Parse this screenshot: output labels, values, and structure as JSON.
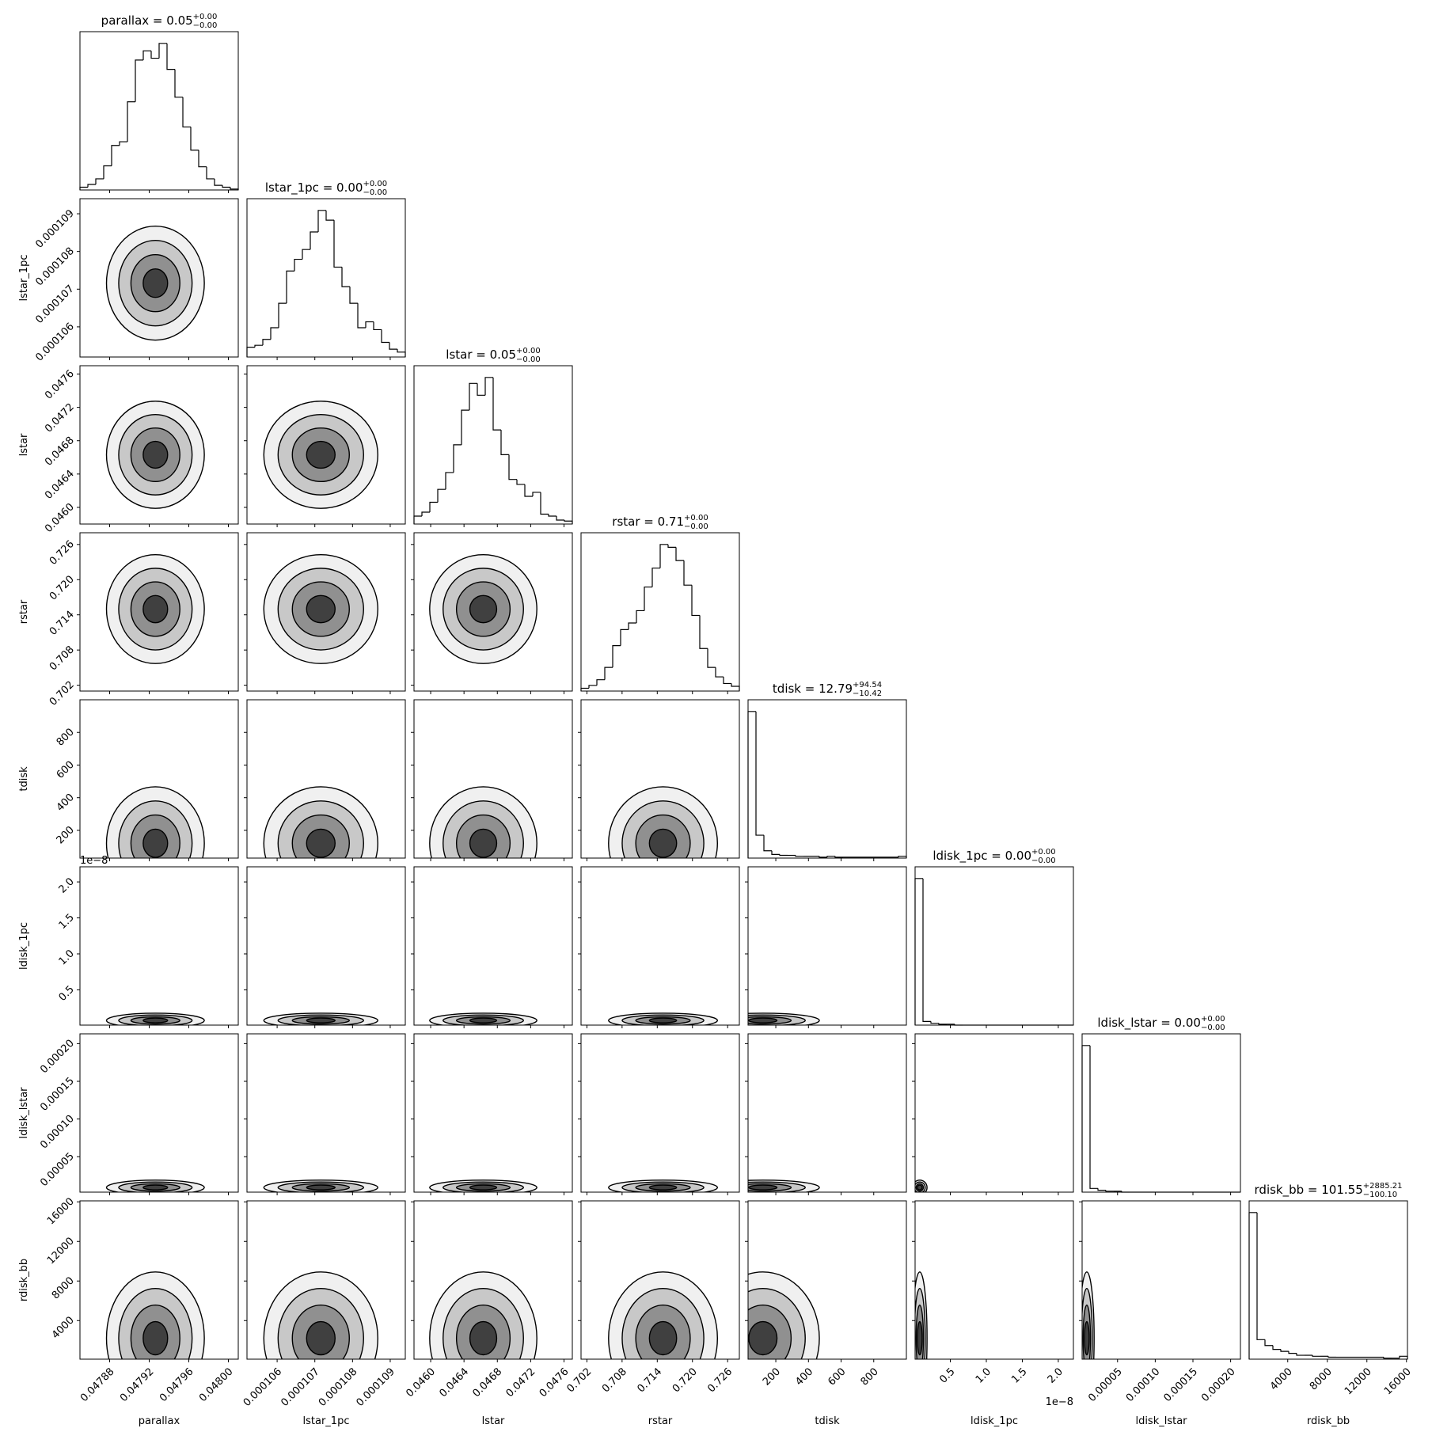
{
  "chart_data": {
    "type": "corner",
    "color": "#000000",
    "params": [
      {
        "name": "parallax",
        "title": "parallax = 0.05",
        "title_upper": "+0.00",
        "title_lower": "−0.00",
        "lim": [
          0.04785,
          0.04801
        ],
        "ticks": [
          0.04788,
          0.04792,
          0.04796,
          {
            "value": 0.048,
            "label": "0.04800"
          }
        ],
        "bins": [
          0.04785,
          0.047858,
          0.047866,
          0.047874,
          0.047882,
          0.04789,
          0.047898,
          0.047906,
          0.047914,
          0.047922,
          0.04793,
          0.047938,
          0.047946,
          0.047954,
          0.047962,
          0.04797,
          0.047978,
          0.047986,
          0.047994,
          0.048002,
          0.04801
        ],
        "counts": [
          3,
          6,
          12,
          26,
          48,
          52,
          95,
          140,
          150,
          142,
          158,
          130,
          100,
          68,
          43,
          25,
          12,
          5,
          3,
          1
        ]
      },
      {
        "name": "lstar_1pc",
        "title": "lstar_1pc = 0.00",
        "title_upper": "+0.00",
        "title_lower": "−0.00",
        "lim": [
          0.0001052,
          0.0001094
        ],
        "ticks": [
          0.000106,
          0.000107,
          0.000108,
          0.000109
        ],
        "bins": [
          0.0001052,
          0.00010541,
          0.00010562,
          0.00010583,
          0.00010604,
          0.00010625,
          0.00010646,
          0.00010667,
          0.00010688,
          0.00010709,
          0.0001073,
          0.00010751,
          0.00010772,
          0.00010793,
          0.00010814,
          0.00010835,
          0.00010856,
          0.00010877,
          0.00010898,
          0.00010919,
          0.0001094
        ],
        "counts": [
          10,
          12,
          18,
          30,
          55,
          88,
          100,
          110,
          128,
          150,
          140,
          92,
          72,
          55,
          30,
          36,
          28,
          15,
          8,
          5
        ]
      },
      {
        "name": "lstar",
        "title": "lstar = 0.05",
        "title_upper": "+0.00",
        "title_lower": "−0.00",
        "lim": [
          0.0458,
          0.0477
        ],
        "ticks": [
          {
            "value": 0.046,
            "label": "0.0460"
          },
          0.0464,
          0.0468,
          0.0472,
          0.0476
        ],
        "bins": [
          0.0458,
          0.045895,
          0.04599,
          0.046085,
          0.04618,
          0.046275,
          0.04637,
          0.046465,
          0.04656,
          0.046655,
          0.04675,
          0.046845,
          0.04694,
          0.047035,
          0.04713,
          0.047225,
          0.04732,
          0.047415,
          0.04751,
          0.047605,
          0.0477
        ],
        "counts": [
          8,
          12,
          22,
          35,
          52,
          80,
          115,
          142,
          130,
          148,
          95,
          70,
          45,
          40,
          28,
          32,
          10,
          8,
          4,
          3
        ]
      },
      {
        "name": "rstar",
        "title": "rstar = 0.71",
        "title_upper": "+0.00",
        "title_lower": "−0.00",
        "lim": [
          0.701,
          0.728
        ],
        "ticks": [
          0.702,
          0.708,
          0.714,
          {
            "value": 0.72,
            "label": "0.720"
          },
          0.726
        ],
        "bins": [
          0.701,
          0.70235,
          0.7037,
          0.70505,
          0.7064,
          0.70775,
          0.7091,
          0.71045,
          0.7118,
          0.71315,
          0.7145,
          0.71585,
          0.7172,
          0.71855,
          0.7199,
          0.72125,
          0.7226,
          0.72395,
          0.7253,
          0.72665,
          0.728
        ],
        "counts": [
          3,
          6,
          12,
          25,
          48,
          65,
          72,
          85,
          110,
          130,
          155,
          152,
          138,
          112,
          80,
          45,
          25,
          15,
          8,
          5
        ]
      },
      {
        "name": "tdisk",
        "title": "tdisk = 12.79",
        "title_upper": "+94.54",
        "title_lower": "−10.42",
        "lim": [
          30,
          1000
        ],
        "ticks": [
          200,
          400,
          600,
          800
        ],
        "bins": [
          30,
          78.5,
          127,
          175.5,
          224,
          272.5,
          321,
          369.5,
          418,
          466.5,
          515,
          563.5,
          612,
          660.5,
          709,
          757.5,
          806,
          854.5,
          903,
          951.5,
          1000
        ],
        "counts": [
          160,
          25,
          8,
          4,
          3,
          3,
          2,
          2,
          2,
          1,
          2,
          1,
          1,
          1,
          1,
          1,
          1,
          1,
          1,
          2
        ]
      },
      {
        "name": "ldisk_1pc",
        "title": "ldisk_1pc = 0.00",
        "title_upper": "+0.00",
        "title_lower": "−0.00",
        "offset_label": "1e−8",
        "lim": [
          0.01,
          2.21
        ],
        "ticks": [
          0.5,
          {
            "value": 1,
            "label": "1.0"
          },
          1.5,
          {
            "value": 2,
            "label": "2.0"
          }
        ],
        "bins": [
          0.01,
          0.12,
          0.23,
          0.34,
          0.45,
          0.56,
          0.67,
          0.78,
          0.89,
          1.0,
          1.11,
          1.22,
          1.33,
          1.44,
          1.55,
          1.66,
          1.77,
          1.88,
          1.99,
          2.1,
          2.21
        ],
        "counts": [
          160,
          4,
          2,
          1,
          1,
          0,
          0,
          0,
          0,
          0,
          0,
          0,
          0,
          0,
          0,
          0,
          0,
          0,
          0,
          0
        ]
      },
      {
        "name": "ldisk_lstar",
        "title": "ldisk_lstar = 0.00",
        "title_upper": "+0.00",
        "title_lower": "−0.00",
        "lim": [
          3e-06,
          0.000213
        ],
        "ticks": [
          5e-05,
          {
            "value": 0.0001,
            "label": "0.00010"
          },
          0.00015,
          {
            "value": 0.0002,
            "label": "0.00020"
          }
        ],
        "bins": [
          3e-06,
          1.35e-05,
          2.4e-05,
          3.45e-05,
          4.5e-05,
          5.55e-05,
          6.6e-05,
          7.65e-05,
          8.7e-05,
          9.75e-05,
          0.000108,
          0.0001185,
          0.000129,
          0.0001395,
          0.00015,
          0.0001605,
          0.000171,
          0.0001815,
          0.000192,
          0.0002025,
          0.000213
        ],
        "counts": [
          158,
          4,
          2,
          1,
          1,
          0,
          0,
          0,
          0,
          0,
          0,
          0,
          0,
          0,
          0,
          0,
          0,
          0,
          0,
          0
        ]
      },
      {
        "name": "rdisk_bb",
        "title": "rdisk_bb = 101.55",
        "title_upper": "+2885.21",
        "title_lower": "−100.10",
        "lim": [
          100,
          16100
        ],
        "ticks": [
          4000,
          8000,
          12000,
          16000
        ],
        "bins": [
          100,
          900,
          1700,
          2500,
          3300,
          4100,
          4900,
          5700,
          6500,
          7300,
          8100,
          8900,
          9700,
          10500,
          11300,
          12100,
          12900,
          13700,
          14500,
          15300,
          16100
        ],
        "counts": [
          150,
          20,
          14,
          10,
          8,
          6,
          4,
          4,
          3,
          3,
          2,
          2,
          2,
          2,
          2,
          2,
          2,
          1,
          1,
          3
        ]
      }
    ]
  }
}
